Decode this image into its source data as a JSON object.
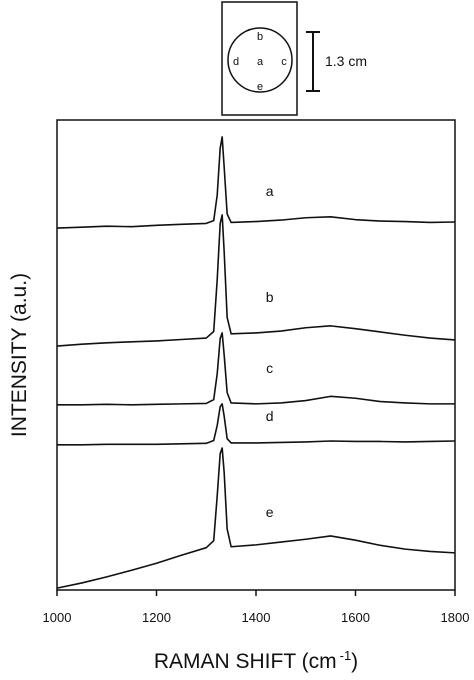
{
  "chart_data": {
    "type": "line",
    "y_label": "INTENSITY (a.u.)",
    "x_label": {
      "text": "RAMAN SHIFT (cm",
      "sup": "-1",
      "close": ")"
    },
    "x": [
      1000,
      1050,
      1100,
      1150,
      1200,
      1250,
      1300,
      1315,
      1322,
      1328,
      1332,
      1336,
      1342,
      1350,
      1400,
      1450,
      1500,
      1550,
      1600,
      1650,
      1700,
      1750,
      1800
    ],
    "xlim": [
      1000,
      1800
    ],
    "xticks": [
      1000,
      1200,
      1400,
      1600,
      1800
    ],
    "ylim": [
      0,
      100
    ],
    "color": "#111111",
    "series": [
      {
        "name": "a",
        "values": [
          77.0,
          77.2,
          77.4,
          77.3,
          77.6,
          77.8,
          78.0,
          78.6,
          84,
          94,
          96.4,
          90,
          80,
          78.2,
          78.4,
          78.7,
          79.2,
          79.4,
          78.8,
          78.5,
          78.4,
          78.2,
          78.3
        ]
      },
      {
        "name": "b",
        "values": [
          51.9,
          52.3,
          52.6,
          52.8,
          53.0,
          53.3,
          53.6,
          55,
          66,
          78,
          79.8,
          72,
          58,
          54.5,
          54.7,
          55.1,
          55.8,
          56.2,
          55.6,
          54.9,
          54.2,
          53.6,
          53.2
        ]
      },
      {
        "name": "c",
        "values": [
          39.4,
          39.4,
          39.5,
          39.4,
          39.5,
          39.6,
          39.7,
          40.5,
          46,
          53.5,
          54.7,
          50,
          42,
          39.8,
          39.6,
          39.8,
          40.3,
          41.2,
          40.8,
          40.1,
          39.8,
          39.6,
          39.6
        ]
      },
      {
        "name": "d",
        "values": [
          30.9,
          30.9,
          31.0,
          31.0,
          31.0,
          31.1,
          31.2,
          31.8,
          35,
          39,
          39.6,
          37,
          32.2,
          31.3,
          31.3,
          31.4,
          31.5,
          31.7,
          31.6,
          31.6,
          31.5,
          31.6,
          31.7
        ]
      },
      {
        "name": "e",
        "values": [
          0.4,
          1.5,
          2.8,
          4.2,
          5.7,
          7.4,
          9.0,
          10.5,
          20,
          29,
          30.2,
          25,
          13,
          9.2,
          9.6,
          10.2,
          10.8,
          11.5,
          10.6,
          9.5,
          8.7,
          8.2,
          7.9
        ]
      }
    ]
  },
  "inset": {
    "center": "a",
    "top": "b",
    "left": "d",
    "right": "c",
    "bottom": "e",
    "scale": "1.3 cm"
  }
}
